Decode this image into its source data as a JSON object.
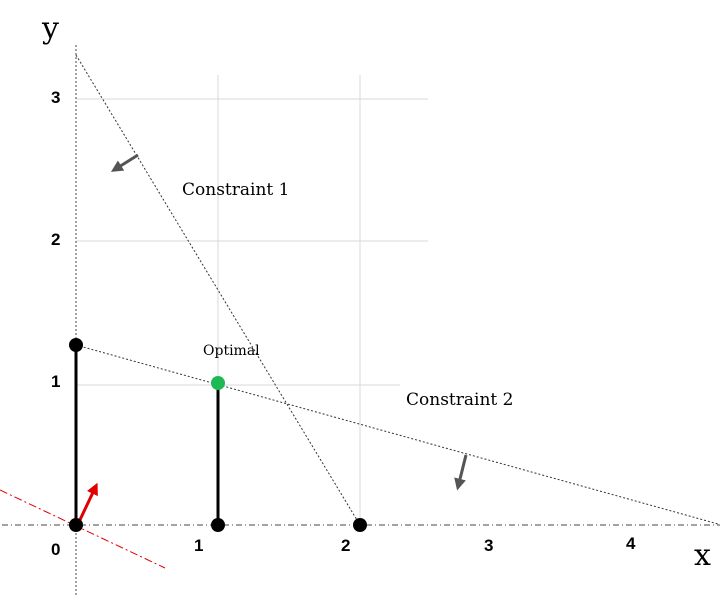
{
  "axes": {
    "x_label": "x",
    "y_label": "y",
    "x_ticks": [
      "0",
      "1",
      "2",
      "3",
      "4"
    ],
    "y_ticks": [
      "1",
      "2",
      "3"
    ]
  },
  "labels": {
    "constraint1": "Constraint 1",
    "constraint2": "Constraint 2",
    "optimal": "Optimal"
  },
  "colors": {
    "optimal_point": "#1db954",
    "objective_line": "#e00000",
    "objective_arrow": "#e00000",
    "constraint_arrow": "#555555",
    "vertex": "#000000"
  }
}
